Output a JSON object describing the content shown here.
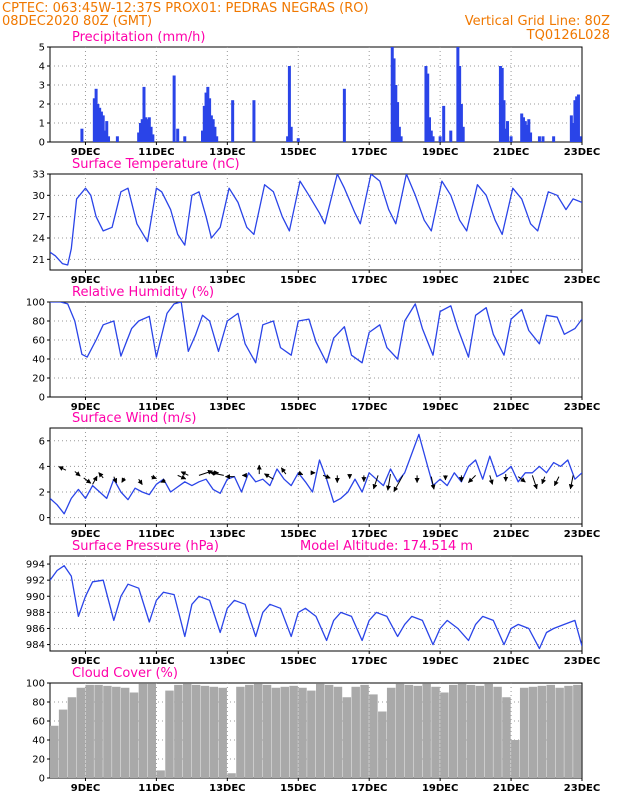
{
  "header": {
    "line1_left": "CPTEC:   063:45W-12:37S   PROX01: PEDRAS NEGRAS (RO)",
    "line2_left": "08DEC2020 80Z (GMT)",
    "line2_right": "Vertical Grid Line: 80Z",
    "line3_right": "TQ0126L028"
  },
  "x_axis": {
    "ticks": [
      "9DEC",
      "11DEC",
      "13DEC",
      "15DEC",
      "17DEC",
      "19DEC",
      "21DEC",
      "23DEC"
    ],
    "ticks_day": [
      9,
      11,
      13,
      15,
      17,
      19,
      21,
      23
    ],
    "range_day": [
      8.0,
      23.0
    ]
  },
  "colors": {
    "series": "#2a44e8",
    "cloud": "#a9a9a9",
    "header": "#f07800",
    "title": "#ff00aa",
    "arrow": "#000000"
  },
  "chart_data": [
    {
      "type": "bar",
      "title": "Precipitation (mm/h)",
      "ylim": [
        0,
        5
      ],
      "yticks": [
        0,
        1,
        2,
        3,
        4,
        5
      ],
      "x_day": [
        8.9,
        9.25,
        9.3,
        9.35,
        9.4,
        9.45,
        9.5,
        9.55,
        9.6,
        9.65,
        9.9,
        10.5,
        10.55,
        10.6,
        10.65,
        10.7,
        10.75,
        10.8,
        10.85,
        10.9,
        11.5,
        11.6,
        11.8,
        12.3,
        12.35,
        12.4,
        12.45,
        12.5,
        12.55,
        12.6,
        12.65,
        12.7,
        13.15,
        13.75,
        14.7,
        14.75,
        14.8,
        15.0,
        16.3,
        17.65,
        17.7,
        17.75,
        17.8,
        17.85,
        17.9,
        18.6,
        18.65,
        18.7,
        18.75,
        18.8,
        19.0,
        19.1,
        19.3,
        19.5,
        19.55,
        19.6,
        19.65,
        20.7,
        20.75,
        20.8,
        20.85,
        20.9,
        21.0,
        21.3,
        21.35,
        21.4,
        21.45,
        21.5,
        21.55,
        21.8,
        21.9,
        22.2,
        22.7,
        22.75,
        22.8,
        22.85,
        22.9,
        22.95
      ],
      "values": [
        0.7,
        2.3,
        2.8,
        2.0,
        1.8,
        1.6,
        1.4,
        0.6,
        1.1,
        0.3,
        0.3,
        0.5,
        1.0,
        1.2,
        2.9,
        1.3,
        1.2,
        1.3,
        0.8,
        0.4,
        3.5,
        0.7,
        0.3,
        0.6,
        1.9,
        2.6,
        2.9,
        2.3,
        1.4,
        1.2,
        0.8,
        0.3,
        2.2,
        2.2,
        0.3,
        4.0,
        0.8,
        0.2,
        2.8,
        5.0,
        4.4,
        3.0,
        2.1,
        0.8,
        0.3,
        4.0,
        3.6,
        1.3,
        0.6,
        0.3,
        0.3,
        1.9,
        0.6,
        5.0,
        4.0,
        2.0,
        0.8,
        4.0,
        3.9,
        2.2,
        0.7,
        1.1,
        0.3,
        1.5,
        1.3,
        1.1,
        0.9,
        1.2,
        0.5,
        0.3,
        0.3,
        0.3,
        1.4,
        1.0,
        2.2,
        2.4,
        2.5,
        0.3
      ]
    },
    {
      "type": "line",
      "title": "Surface Temperature (nC)",
      "ylim": [
        19.5,
        33
      ],
      "yticks": [
        21,
        24,
        27,
        30,
        33
      ],
      "x_day": [
        8.0,
        8.15,
        8.35,
        8.5,
        8.6,
        8.75,
        9.0,
        9.15,
        9.3,
        9.5,
        9.75,
        10.0,
        10.2,
        10.45,
        10.75,
        11.0,
        11.15,
        11.4,
        11.6,
        11.8,
        12.0,
        12.2,
        12.4,
        12.55,
        12.8,
        13.05,
        13.3,
        13.55,
        13.75,
        14.05,
        14.3,
        14.55,
        14.75,
        15.05,
        15.3,
        15.6,
        15.75,
        16.1,
        16.3,
        16.6,
        16.75,
        17.05,
        17.3,
        17.55,
        17.75,
        18.05,
        18.3,
        18.55,
        18.75,
        19.05,
        19.3,
        19.55,
        19.75,
        20.05,
        20.3,
        20.55,
        20.75,
        21.05,
        21.3,
        21.55,
        21.75,
        22.05,
        22.3,
        22.55,
        22.75,
        23.0
      ],
      "values": [
        22.0,
        21.5,
        20.4,
        20.2,
        22.5,
        29.5,
        31.0,
        30.0,
        27.0,
        25.0,
        25.5,
        30.5,
        31.0,
        26.0,
        23.5,
        31.0,
        30.5,
        28.0,
        24.5,
        23.0,
        30.0,
        30.5,
        27.0,
        24.0,
        25.5,
        31.0,
        29.0,
        25.5,
        24.5,
        31.5,
        30.5,
        27.0,
        25.0,
        32.0,
        30.0,
        27.5,
        26.0,
        33.0,
        31.0,
        27.5,
        26.0,
        33.0,
        32.0,
        28.0,
        26.0,
        33.0,
        30.0,
        26.5,
        25.0,
        32.0,
        30.0,
        26.5,
        25.0,
        31.5,
        30.0,
        26.5,
        24.5,
        31.0,
        29.5,
        26.0,
        25.0,
        30.5,
        30.0,
        28.0,
        29.5,
        29.0
      ]
    },
    {
      "type": "line",
      "title": "Relative Humidity (%)",
      "ylim": [
        0,
        100
      ],
      "yticks": [
        0,
        20,
        40,
        60,
        80,
        100
      ],
      "x_day": [
        8.0,
        8.3,
        8.5,
        8.7,
        8.9,
        9.05,
        9.3,
        9.5,
        9.8,
        10.0,
        10.3,
        10.5,
        10.8,
        11.0,
        11.3,
        11.5,
        11.7,
        11.9,
        12.1,
        12.3,
        12.5,
        12.75,
        13.0,
        13.3,
        13.5,
        13.8,
        14.0,
        14.3,
        14.5,
        14.8,
        15.0,
        15.3,
        15.5,
        15.8,
        16.0,
        16.3,
        16.5,
        16.8,
        17.0,
        17.3,
        17.5,
        17.8,
        18.0,
        18.3,
        18.5,
        18.8,
        19.0,
        19.3,
        19.5,
        19.8,
        20.0,
        20.3,
        20.5,
        20.8,
        21.0,
        21.3,
        21.5,
        21.8,
        22.0,
        22.3,
        22.5,
        22.8,
        23.0
      ],
      "values": [
        100,
        100,
        98,
        80,
        45,
        42,
        60,
        76,
        80,
        43,
        72,
        80,
        85,
        42,
        88,
        98,
        100,
        48,
        65,
        86,
        80,
        48,
        80,
        88,
        56,
        36,
        76,
        80,
        52,
        44,
        80,
        82,
        58,
        36,
        62,
        74,
        44,
        36,
        68,
        76,
        52,
        40,
        80,
        98,
        72,
        44,
        90,
        96,
        72,
        42,
        86,
        94,
        66,
        44,
        82,
        92,
        70,
        56,
        86,
        84,
        66,
        72,
        82
      ]
    },
    {
      "type": "line",
      "title": "Surface Wind (m/s)",
      "ylim": [
        -0.5,
        7
      ],
      "yticks": [
        0,
        2,
        4,
        6
      ],
      "x_day": [
        8.0,
        8.2,
        8.4,
        8.6,
        8.8,
        9.0,
        9.2,
        9.4,
        9.6,
        9.8,
        10.0,
        10.2,
        10.4,
        10.6,
        10.8,
        11.0,
        11.2,
        11.4,
        11.6,
        11.8,
        12.0,
        12.2,
        12.4,
        12.6,
        12.8,
        13.0,
        13.2,
        13.4,
        13.6,
        13.8,
        14.0,
        14.2,
        14.4,
        14.6,
        14.8,
        15.0,
        15.2,
        15.4,
        15.6,
        15.8,
        16.0,
        16.2,
        16.4,
        16.6,
        16.8,
        17.0,
        17.2,
        17.4,
        17.6,
        17.8,
        18.0,
        18.2,
        18.4,
        18.6,
        18.8,
        19.0,
        19.2,
        19.4,
        19.6,
        19.8,
        20.0,
        20.2,
        20.4,
        20.6,
        20.8,
        21.0,
        21.2,
        21.4,
        21.6,
        21.8,
        22.0,
        22.2,
        22.4,
        22.6,
        22.8,
        23.0
      ],
      "values": [
        1.5,
        1.0,
        0.3,
        1.5,
        2.2,
        1.5,
        2.5,
        2.0,
        1.5,
        3.0,
        2.0,
        1.4,
        2.3,
        2.0,
        1.8,
        2.6,
        3.0,
        2.0,
        2.4,
        2.8,
        2.5,
        2.8,
        3.0,
        2.2,
        1.9,
        3.0,
        3.2,
        2.0,
        3.5,
        2.8,
        3.0,
        2.5,
        3.8,
        3.0,
        2.5,
        3.5,
        2.8,
        2.0,
        4.5,
        3.0,
        1.2,
        1.5,
        2.0,
        3.0,
        2.0,
        3.5,
        3.0,
        2.5,
        3.8,
        2.8,
        3.5,
        5.0,
        6.5,
        4.5,
        2.5,
        3.0,
        2.5,
        3.5,
        2.8,
        4.0,
        4.5,
        3.0,
        4.8,
        3.2,
        3.5,
        4.0,
        2.8,
        3.5,
        3.5,
        4.0,
        3.5,
        4.3,
        4.0,
        4.5,
        3.0,
        3.5
      ],
      "arrows": {
        "x_day": [
          8.45,
          8.7,
          8.95,
          9.2,
          9.5,
          9.8,
          10.1,
          10.5,
          10.85,
          11.25,
          11.6,
          11.9,
          12.2,
          12.55,
          12.9,
          13.2,
          13.55,
          13.9,
          14.3,
          14.65,
          15.0,
          15.35,
          15.7,
          16.1,
          16.45,
          16.85,
          17.25,
          17.6,
          17.95,
          18.35,
          18.75,
          19.15,
          19.6,
          20.0,
          20.4,
          20.85,
          21.2,
          21.6,
          21.95,
          22.35,
          22.75
        ],
        "y": [
          3.7,
          3.6,
          3.1,
          2.6,
          3.1,
          3.2,
          3.1,
          3.0,
          3.2,
          2.9,
          3.3,
          3.3,
          3.3,
          3.5,
          3.3,
          3.2,
          3.3,
          3.4,
          3.0,
          3.4,
          3.5,
          3.5,
          3.3,
          3.3,
          3.4,
          3.3,
          3.3,
          3.4,
          3.3,
          3.3,
          3.2,
          3.3,
          3.3,
          3.3,
          3.3,
          3.4,
          3.2,
          3.3,
          3.2,
          3.2,
          3.3
        ],
        "u": [
          -0.8,
          0.6,
          0.8,
          0.5,
          -0.5,
          0.3,
          -0.3,
          0.4,
          0.6,
          -0.5,
          0.9,
          -0.8,
          1.5,
          0.8,
          -1.5,
          -1.0,
          -0.5,
          0.0,
          -1.0,
          -0.5,
          0.5,
          0.5,
          0.8,
          0.0,
          0.0,
          0.0,
          -0.5,
          -0.3,
          -1.0,
          0.0,
          0.3,
          0.0,
          0.0,
          -0.8,
          0.3,
          0.0,
          0.8,
          0.5,
          -0.3,
          -0.5,
          -0.3
        ],
        "v": [
          0.4,
          -0.5,
          -0.6,
          0.9,
          0.6,
          -0.7,
          -0.5,
          -0.6,
          -0.2,
          -0.2,
          -0.4,
          0.4,
          0.5,
          0.0,
          0.3,
          0.0,
          0.0,
          1.0,
          0.6,
          0.7,
          -0.2,
          0.0,
          -0.3,
          -0.8,
          -0.5,
          -0.7,
          -1.5,
          -1.8,
          -1.8,
          -0.8,
          -1.4,
          -0.5,
          -0.7,
          -0.8,
          -1.0,
          -0.8,
          -0.6,
          -1.5,
          -0.8,
          -1.0,
          -1.5
        ]
      }
    },
    {
      "type": "line",
      "title": "Surface Pressure (hPa)",
      "subtitle": "Model Altitude: 174.514 m",
      "ylim": [
        983.2,
        995
      ],
      "yticks": [
        984,
        986,
        988,
        990,
        992,
        994
      ],
      "x_day": [
        8.0,
        8.2,
        8.4,
        8.6,
        8.8,
        9.0,
        9.2,
        9.5,
        9.8,
        10.0,
        10.2,
        10.5,
        10.8,
        11.0,
        11.2,
        11.5,
        11.8,
        12.0,
        12.2,
        12.5,
        12.8,
        13.0,
        13.2,
        13.5,
        13.8,
        14.0,
        14.2,
        14.5,
        14.8,
        15.0,
        15.2,
        15.5,
        15.8,
        16.0,
        16.2,
        16.5,
        16.8,
        17.0,
        17.2,
        17.5,
        17.8,
        18.0,
        18.2,
        18.5,
        18.8,
        19.0,
        19.2,
        19.5,
        19.8,
        20.0,
        20.2,
        20.5,
        20.8,
        21.0,
        21.2,
        21.5,
        21.8,
        22.0,
        22.2,
        22.5,
        22.8,
        23.0
      ],
      "values": [
        992.0,
        993.2,
        993.8,
        992.5,
        987.5,
        990.0,
        991.8,
        992.0,
        987.0,
        990.0,
        991.5,
        991.0,
        986.8,
        989.5,
        990.5,
        990.2,
        985.0,
        989.0,
        990.0,
        989.5,
        985.5,
        988.5,
        989.5,
        989.0,
        985.0,
        988.0,
        989.0,
        988.5,
        985.0,
        988.0,
        988.5,
        987.5,
        984.5,
        987.0,
        988.0,
        987.5,
        984.5,
        987.0,
        988.0,
        987.5,
        985.0,
        986.5,
        987.5,
        987.0,
        984.0,
        986.0,
        987.0,
        986.0,
        984.5,
        986.5,
        987.5,
        987.0,
        984.0,
        986.0,
        986.5,
        986.0,
        983.5,
        985.5,
        986.0,
        986.5,
        987.0,
        983.8
      ]
    },
    {
      "type": "area",
      "title": "Cloud Cover (%)",
      "ylim": [
        0,
        100
      ],
      "yticks": [
        0,
        20,
        40,
        60,
        80,
        100
      ],
      "x_day": [
        8.0,
        8.25,
        8.5,
        8.75,
        9.0,
        9.25,
        9.5,
        9.75,
        10.0,
        10.25,
        10.5,
        10.75,
        11.0,
        11.25,
        11.5,
        11.75,
        12.0,
        12.25,
        12.5,
        12.75,
        13.0,
        13.25,
        13.5,
        13.75,
        14.0,
        14.25,
        14.5,
        14.75,
        15.0,
        15.25,
        15.5,
        15.75,
        16.0,
        16.25,
        16.5,
        16.75,
        17.0,
        17.25,
        17.5,
        17.75,
        18.0,
        18.25,
        18.5,
        18.75,
        19.0,
        19.25,
        19.5,
        19.75,
        20.0,
        20.25,
        20.5,
        20.75,
        21.0,
        21.25,
        21.5,
        21.75,
        22.0,
        22.25,
        22.5,
        22.75,
        23.0
      ],
      "values": [
        55,
        72,
        85,
        95,
        98,
        98,
        97,
        96,
        95,
        90,
        99,
        99,
        8,
        92,
        98,
        99,
        98,
        97,
        96,
        95,
        5,
        96,
        98,
        99,
        98,
        95,
        96,
        97,
        95,
        92,
        99,
        98,
        96,
        85,
        96,
        98,
        88,
        70,
        95,
        99,
        98,
        97,
        99,
        96,
        90,
        98,
        99,
        98,
        97,
        99,
        96,
        85,
        40,
        95,
        96,
        97,
        98,
        95,
        97,
        98,
        95
      ]
    }
  ]
}
